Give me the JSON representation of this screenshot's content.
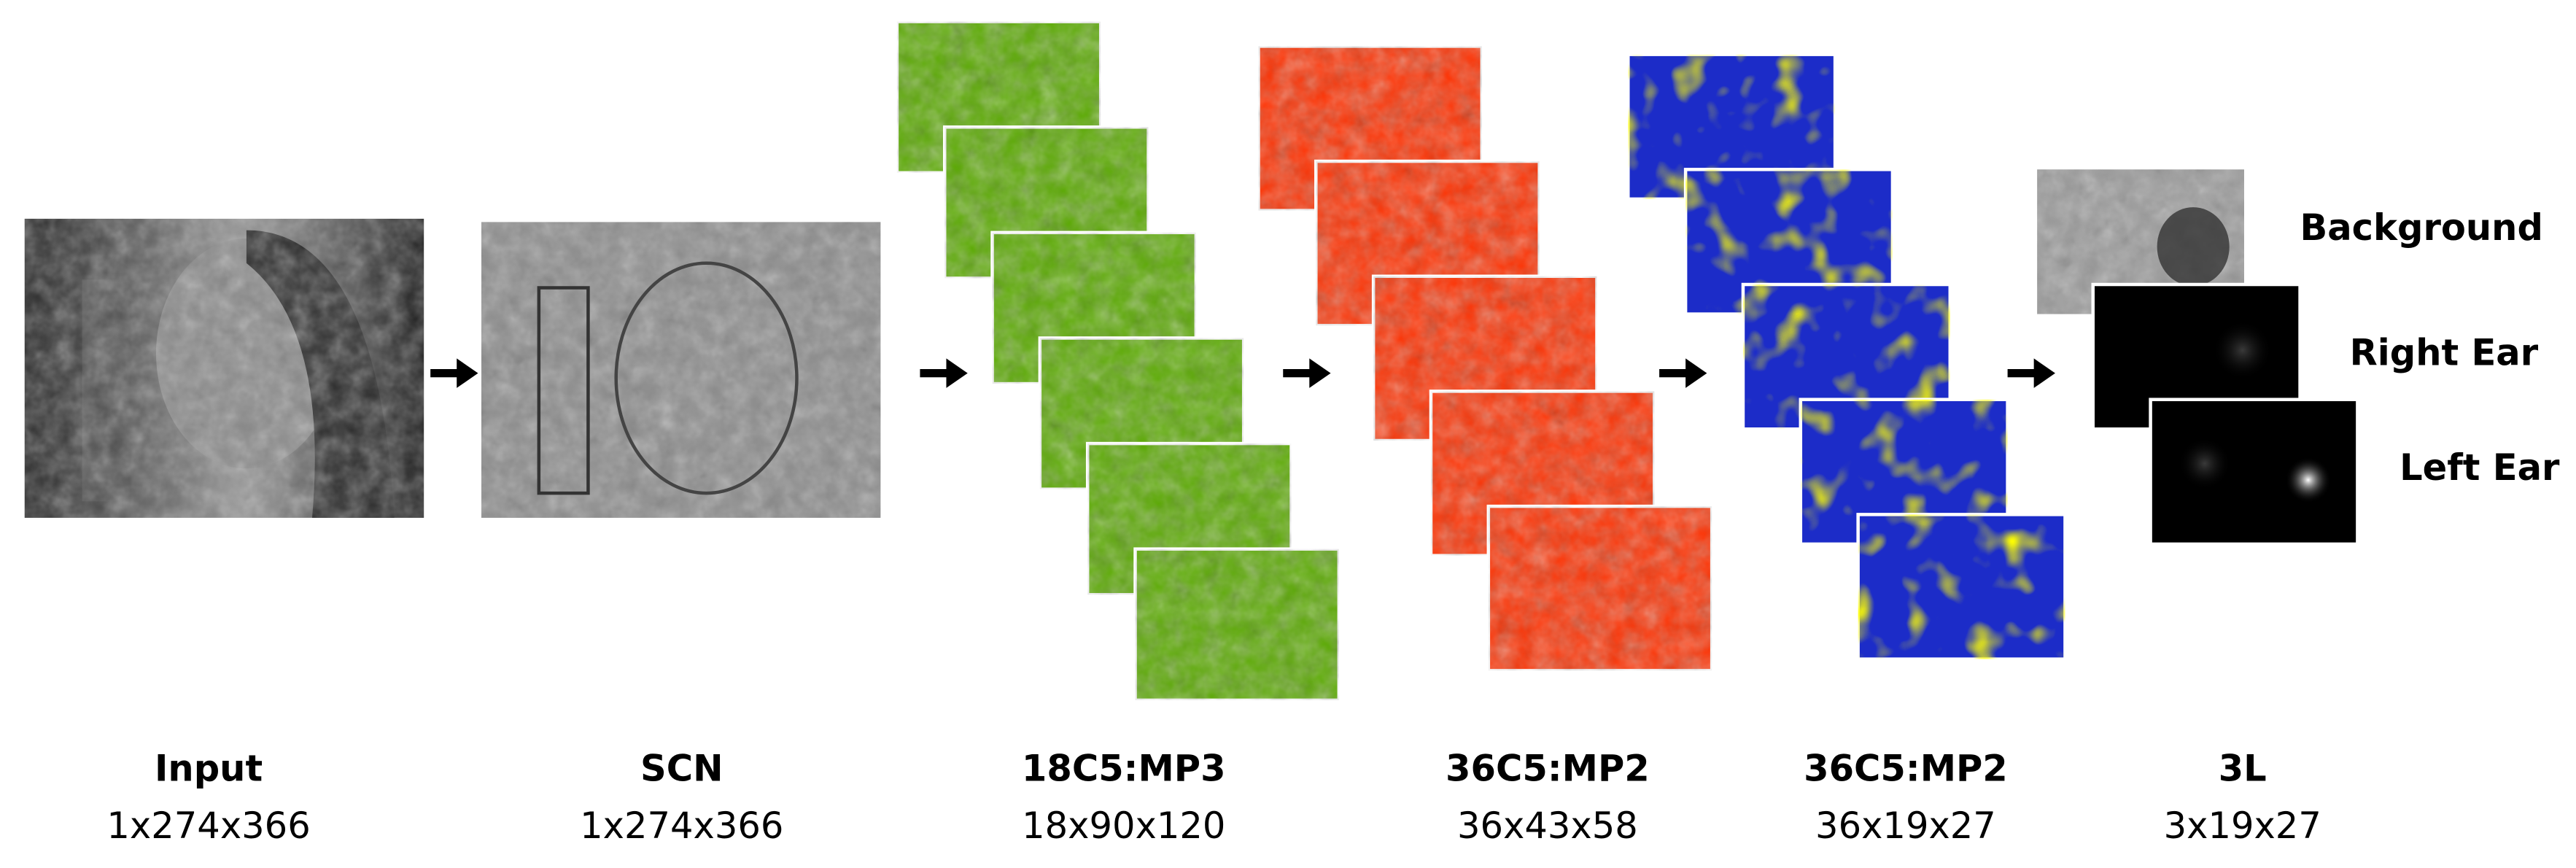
{
  "stages": [
    {
      "name": "Input",
      "dims": "1x274x366"
    },
    {
      "name": "SCN",
      "dims": "1x274x366"
    },
    {
      "name": "18C5:MP3",
      "dims": "18x90x120"
    },
    {
      "name": "36C5:MP2",
      "dims": "36x43x58"
    },
    {
      "name": "36C5:MP2",
      "dims": "36x19x27"
    },
    {
      "name": "3L",
      "dims": "3x19x27"
    }
  ],
  "outputs": [
    {
      "label": "Background"
    },
    {
      "label": "Right Ear"
    },
    {
      "label": "Left Ear"
    }
  ]
}
